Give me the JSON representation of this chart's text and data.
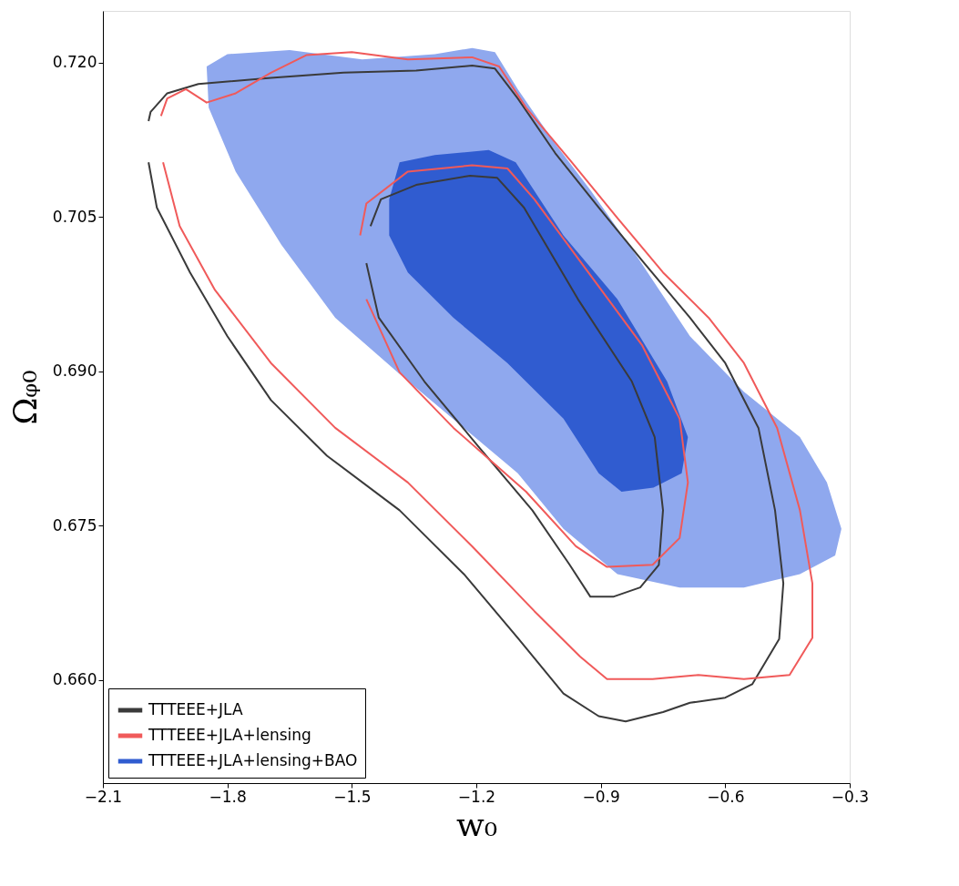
{
  "chart_data": {
    "type": "line",
    "xlabel": "w₀",
    "ylabel": "Ωᵩ₀",
    "xlim": [
      -2.1,
      -0.3
    ],
    "ylim": [
      0.65,
      0.725
    ],
    "xticks": [
      {
        "value": -2.1,
        "label": "−2.1"
      },
      {
        "value": -1.8,
        "label": "−1.8"
      },
      {
        "value": -1.5,
        "label": "−1.5"
      },
      {
        "value": -1.2,
        "label": "−1.2"
      },
      {
        "value": -0.9,
        "label": "−0.9"
      },
      {
        "value": -0.6,
        "label": "−0.6"
      },
      {
        "value": -0.3,
        "label": "−0.3"
      }
    ],
    "yticks": [
      {
        "value": 0.66,
        "label": "0.660"
      },
      {
        "value": 0.675,
        "label": "0.675"
      },
      {
        "value": 0.69,
        "label": "0.690"
      },
      {
        "value": 0.705,
        "label": "0.705"
      },
      {
        "value": 0.72,
        "label": "0.720"
      }
    ],
    "grid": false,
    "legend": "bottom left",
    "series": [
      {
        "name": "TTTEEE+JLA",
        "color": "#3a3a3a",
        "x": [
          -1.99,
          -1.985,
          -1.945,
          -1.87,
          -1.695,
          -1.52,
          -1.345,
          -1.21,
          -1.155,
          -1.1,
          -1.01,
          -0.905,
          -0.795,
          -0.685,
          -0.6,
          -0.52,
          -0.48,
          -0.46,
          -0.47,
          -0.535,
          -0.6,
          -0.685,
          -0.75,
          -0.84,
          -0.905,
          -0.99,
          -1.1,
          -1.23,
          -1.385,
          -1.56,
          -1.695,
          -1.8,
          -1.89,
          -1.97,
          -1.99
        ],
        "values": [
          0.7143,
          0.7152,
          0.717,
          0.7179,
          0.7185,
          0.719,
          0.7192,
          0.7197,
          0.7194,
          0.7165,
          0.7112,
          0.7059,
          0.7005,
          0.6952,
          0.6908,
          0.6845,
          0.6765,
          0.6694,
          0.664,
          0.6596,
          0.6583,
          0.6578,
          0.6569,
          0.656,
          0.6565,
          0.6587,
          0.6641,
          0.6703,
          0.6765,
          0.6818,
          0.6872,
          0.6934,
          0.6996,
          0.7059,
          0.7103
        ]
      },
      {
        "color": "#3a3a3a",
        "x": [
          -1.455,
          -1.43,
          -1.345,
          -1.215,
          -1.15,
          -1.085,
          -0.955,
          -0.825,
          -0.77,
          -0.75,
          -0.76,
          -0.805,
          -0.87,
          -0.925,
          -0.975,
          -1.065,
          -1.195,
          -1.325,
          -1.435,
          -1.465
        ],
        "values": [
          0.7041,
          0.7067,
          0.7081,
          0.709,
          0.7088,
          0.7059,
          0.697,
          0.689,
          0.6836,
          0.6765,
          0.6712,
          0.669,
          0.6681,
          0.6681,
          0.6712,
          0.6765,
          0.6827,
          0.689,
          0.6952,
          0.7005
        ]
      },
      {
        "name": "TTTEEE+JLA+lensing",
        "color": "#f05a5a",
        "x": [
          -1.96,
          -1.945,
          -1.9,
          -1.85,
          -1.78,
          -1.695,
          -1.61,
          -1.5,
          -1.365,
          -1.21,
          -1.145,
          -1.08,
          -0.97,
          -0.86,
          -0.75,
          -0.64,
          -0.555,
          -0.475,
          -0.42,
          -0.39,
          -0.39,
          -0.445,
          -0.555,
          -0.665,
          -0.775,
          -0.885,
          -0.95,
          -1.06,
          -1.21,
          -1.365,
          -1.54,
          -1.695,
          -1.83,
          -1.915,
          -1.955
        ],
        "values": [
          0.7148,
          0.7165,
          0.7174,
          0.7161,
          0.717,
          0.719,
          0.7207,
          0.721,
          0.7203,
          0.7205,
          0.7196,
          0.7156,
          0.7103,
          0.7049,
          0.6996,
          0.6952,
          0.6908,
          0.6845,
          0.6765,
          0.6694,
          0.6641,
          0.6605,
          0.6601,
          0.6605,
          0.6601,
          0.6601,
          0.6623,
          0.6667,
          0.673,
          0.6792,
          0.6845,
          0.6908,
          0.6979,
          0.7041,
          0.7103
        ]
      },
      {
        "color": "#f05a5a",
        "x": [
          -1.48,
          -1.465,
          -1.365,
          -1.21,
          -1.125,
          -1.06,
          -0.93,
          -0.8,
          -0.71,
          -0.69,
          -0.71,
          -0.775,
          -0.885,
          -0.96,
          -1.08,
          -1.255,
          -1.385,
          -1.465
        ],
        "values": [
          0.7032,
          0.7063,
          0.7094,
          0.71,
          0.7097,
          0.7067,
          0.6996,
          0.6925,
          0.6854,
          0.6792,
          0.6738,
          0.6712,
          0.671,
          0.673,
          0.6783,
          0.6845,
          0.6899,
          0.697
        ]
      },
      {
        "type": "area",
        "color": "#8fa8ee",
        "x": [
          -1.85,
          -1.8,
          -1.65,
          -1.475,
          -1.3,
          -1.21,
          -1.155,
          -1.1,
          -1.01,
          -0.925,
          -0.817,
          -0.685,
          -0.555,
          -0.42,
          -0.355,
          -0.32,
          -0.335,
          -0.42,
          -0.555,
          -0.71,
          -0.86,
          -0.99,
          -1.1,
          -1.23,
          -1.39,
          -1.54,
          -1.67,
          -1.78,
          -1.845
        ],
        "values": [
          0.7196,
          0.7208,
          0.7212,
          0.7203,
          0.7208,
          0.7214,
          0.721,
          0.7174,
          0.7121,
          0.7076,
          0.7014,
          0.6934,
          0.688,
          0.6836,
          0.6792,
          0.6747,
          0.6721,
          0.6703,
          0.669,
          0.669,
          0.6703,
          0.6747,
          0.6801,
          0.6845,
          0.6899,
          0.6952,
          0.7023,
          0.7094,
          0.7156
        ]
      },
      {
        "type": "area",
        "name": "TTTEEE+JLA+lensing+BAO",
        "color": "#305cd0",
        "x": [
          -1.41,
          -1.385,
          -1.3,
          -1.17,
          -1.105,
          -0.99,
          -0.86,
          -0.74,
          -0.69,
          -0.705,
          -0.773,
          -0.85,
          -0.905,
          -0.99,
          -1.125,
          -1.255,
          -1.365,
          -1.41
        ],
        "values": [
          0.7067,
          0.7103,
          0.711,
          0.7115,
          0.7103,
          0.7032,
          0.697,
          0.689,
          0.6836,
          0.6801,
          0.6787,
          0.6783,
          0.6801,
          0.6854,
          0.6908,
          0.6952,
          0.6996,
          0.7032
        ]
      }
    ]
  }
}
